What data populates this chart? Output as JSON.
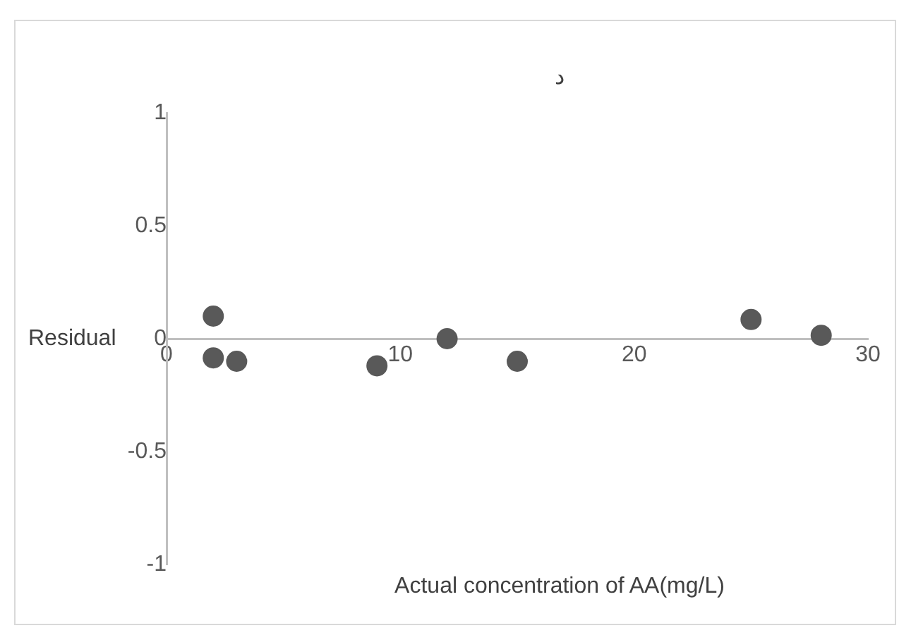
{
  "chart_data": {
    "type": "scatter",
    "title": "د",
    "xlabel": "Actual concentration of AA(mg/L)",
    "ylabel": "Residual",
    "x": [
      2,
      2,
      3,
      9,
      12,
      15,
      25,
      28
    ],
    "values": [
      0.1,
      -0.085,
      -0.1,
      -0.12,
      0,
      -0.1,
      0.085,
      0.015
    ],
    "color": "#595959",
    "marker": "circle",
    "grid": false,
    "legend": false,
    "xlim": [
      0,
      30
    ],
    "xticks": [
      0,
      10,
      20,
      30
    ],
    "ylim": [
      -1,
      1
    ],
    "yticks": [
      -1,
      -0.5,
      0,
      0.5,
      1
    ]
  }
}
